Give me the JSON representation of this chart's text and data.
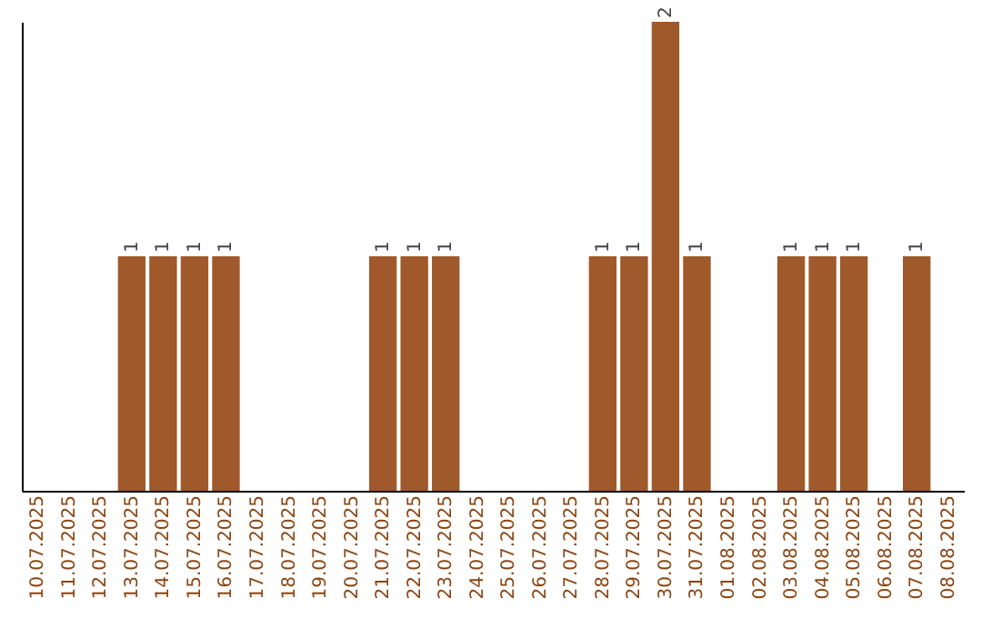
{
  "chart_data": {
    "type": "bar",
    "categories": [
      "10.07.2025",
      "11.07.2025",
      "12.07.2025",
      "13.07.2025",
      "14.07.2025",
      "15.07.2025",
      "16.07.2025",
      "17.07.2025",
      "18.07.2025",
      "19.07.2025",
      "20.07.2025",
      "21.07.2025",
      "22.07.2025",
      "23.07.2025",
      "24.07.2025",
      "25.07.2025",
      "26.07.2025",
      "27.07.2025",
      "28.07.2025",
      "29.07.2025",
      "30.07.2025",
      "31.07.2025",
      "01.08.2025",
      "02.08.2025",
      "03.08.2025",
      "04.08.2025",
      "05.08.2025",
      "06.08.2025",
      "07.08.2025",
      "08.08.2025"
    ],
    "values": [
      0,
      0,
      0,
      1,
      1,
      1,
      1,
      0,
      0,
      0,
      0,
      1,
      1,
      1,
      0,
      0,
      0,
      0,
      1,
      1,
      2,
      1,
      0,
      0,
      1,
      1,
      1,
      0,
      1,
      0
    ],
    "value_labels": [
      null,
      null,
      null,
      "1",
      "1",
      "1",
      "1",
      null,
      null,
      null,
      null,
      "1",
      "1",
      "1",
      null,
      null,
      null,
      null,
      "1",
      "1",
      "2",
      "1",
      null,
      null,
      "1",
      "1",
      "1",
      null,
      "1",
      null
    ],
    "color": "#a0592a",
    "tick_labels": "x"
  }
}
